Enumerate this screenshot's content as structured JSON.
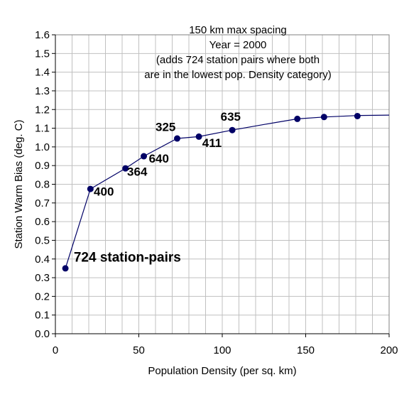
{
  "chart_data": {
    "type": "scatter",
    "title_lines": [
      "150 km max spacing",
      "Year = 2000",
      "(adds 724 station pairs where both",
      "are in the lowest pop. Density category)"
    ],
    "xlabel": "Population Density (per sq. km)",
    "ylabel": "Station Warm Bias (deg. C)",
    "xlim": [
      0,
      200
    ],
    "ylim": [
      0,
      1.6
    ],
    "x_ticks": [
      "0",
      "50",
      "100",
      "150",
      "200"
    ],
    "y_ticks": [
      "0.0",
      "0.1",
      "0.2",
      "0.3",
      "0.4",
      "0.5",
      "0.6",
      "0.7",
      "0.8",
      "0.9",
      "1.0",
      "1.1",
      "1.2",
      "1.3",
      "1.4",
      "1.5",
      "1.6"
    ],
    "grid": true,
    "point_color": "#000066",
    "line_color": "#000066",
    "points": [
      {
        "x": 6,
        "y": 0.35
      },
      {
        "x": 21,
        "y": 0.775
      },
      {
        "x": 42,
        "y": 0.885
      },
      {
        "x": 53,
        "y": 0.95
      },
      {
        "x": 73,
        "y": 1.045
      },
      {
        "x": 86,
        "y": 1.055
      },
      {
        "x": 106,
        "y": 1.09
      },
      {
        "x": 145,
        "y": 1.15
      },
      {
        "x": 161,
        "y": 1.16
      },
      {
        "x": 181,
        "y": 1.165
      }
    ],
    "curve": [
      {
        "x": 6,
        "y": 0.35
      },
      {
        "x": 21,
        "y": 0.775
      },
      {
        "x": 42,
        "y": 0.885
      },
      {
        "x": 53,
        "y": 0.95
      },
      {
        "x": 73,
        "y": 1.045
      },
      {
        "x": 86,
        "y": 1.055
      },
      {
        "x": 106,
        "y": 1.09
      },
      {
        "x": 125,
        "y": 1.12
      },
      {
        "x": 145,
        "y": 1.15
      },
      {
        "x": 161,
        "y": 1.16
      },
      {
        "x": 181,
        "y": 1.168
      },
      {
        "x": 200,
        "y": 1.17
      }
    ],
    "annotations": [
      {
        "text": "724 station-pairs",
        "x": 11,
        "y": 0.385,
        "size": "big"
      },
      {
        "text": "400",
        "x": 23,
        "y": 0.74
      },
      {
        "text": "364",
        "x": 43,
        "y": 0.845
      },
      {
        "text": "640",
        "x": 56,
        "y": 0.915
      },
      {
        "text": "325",
        "x": 60,
        "y": 1.085
      },
      {
        "text": "411",
        "x": 88,
        "y": 1.0
      },
      {
        "text": "635",
        "x": 99,
        "y": 1.14
      }
    ]
  }
}
